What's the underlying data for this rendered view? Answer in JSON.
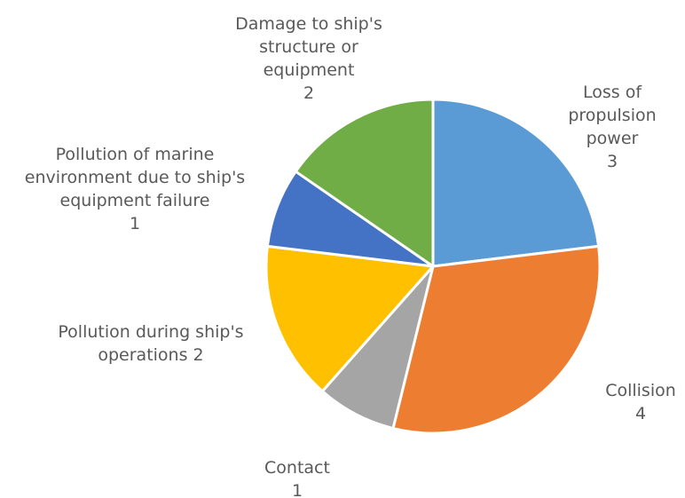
{
  "chart_data": {
    "type": "pie",
    "title": "",
    "start_angle_deg": 0,
    "direction": "clockwise",
    "slices": [
      {
        "label": "Loss of propulsion power",
        "label_lines": [
          "Loss of",
          "propulsion",
          "power",
          "3"
        ],
        "value": 3,
        "color": "#5B9BD5"
      },
      {
        "label": "Collision",
        "label_lines": [
          "Collision",
          "4"
        ],
        "value": 4,
        "color": "#ED7D31"
      },
      {
        "label": "Contact",
        "label_lines": [
          "Contact",
          "1"
        ],
        "value": 1,
        "color": "#A5A5A5"
      },
      {
        "label": "Pollution during ship's operations",
        "label_lines": [
          "Pollution during ship's",
          "operations 2"
        ],
        "value": 2,
        "color": "#FFC000"
      },
      {
        "label": "Pollution of marine environment due to ship's equipment failure",
        "label_lines": [
          "Pollution of marine",
          "environment due to ship's",
          "equipment failure",
          "1"
        ],
        "value": 1,
        "color": "#4472C4"
      },
      {
        "label": "Damage to ship's structure or equipment",
        "label_lines": [
          "Damage to ship's",
          "structure or",
          "equipment",
          "2"
        ],
        "value": 2,
        "color": "#70AD47"
      }
    ]
  }
}
